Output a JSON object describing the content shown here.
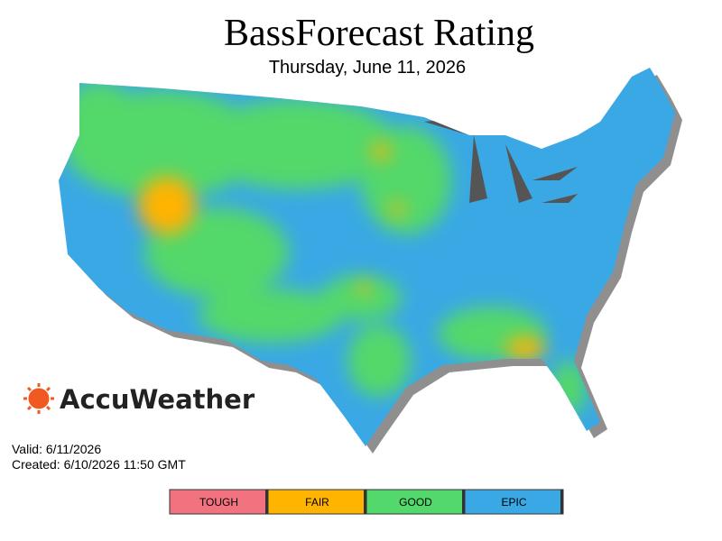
{
  "header": {
    "title": "BassForecast Rating",
    "subtitle": "Thursday, June 11, 2026"
  },
  "brand": "AccuWeather",
  "info": {
    "valid": "Valid: 6/11/2026",
    "created": "Created: 6/10/2026 11:50 GMT"
  },
  "legend": [
    {
      "label": "TOUGH",
      "color": "#f2737f"
    },
    {
      "label": "FAIR",
      "color": "#ffb400"
    },
    {
      "label": "GOOD",
      "color": "#52d86b"
    },
    {
      "label": "EPIC",
      "color": "#3aa8e4"
    }
  ]
}
